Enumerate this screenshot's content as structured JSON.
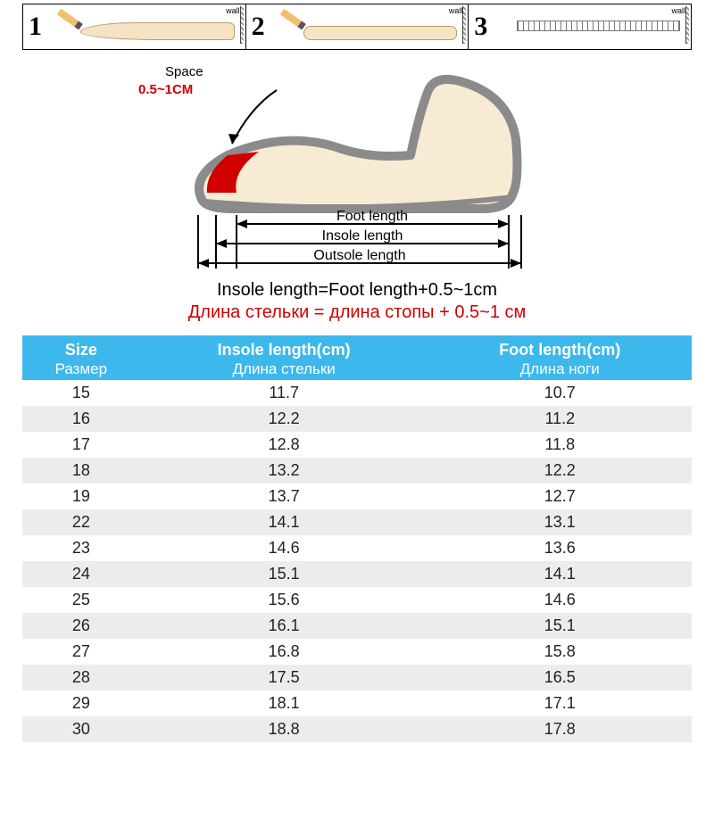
{
  "steps": {
    "nums": [
      "1",
      "2",
      "3"
    ],
    "wall_label": "wall"
  },
  "diagram": {
    "space_label": "Space",
    "space_value": "0.5~1CM",
    "foot_length": "Foot length",
    "insole_length": "Insole length",
    "outsole_length": "Outsole length"
  },
  "formula": {
    "en": "Insole length=Foot length+0.5~1cm",
    "ru": "Длина стельки = длина стопы + 0.5~1 см"
  },
  "table": {
    "headers": [
      {
        "en": "Size",
        "ru": "Размер"
      },
      {
        "en": "Insole length(cm)",
        "ru": "Длина стельки"
      },
      {
        "en": "Foot length(cm)",
        "ru": "Длина ноги"
      }
    ],
    "rows": [
      [
        "15",
        "11.7",
        "10.7"
      ],
      [
        "16",
        "12.2",
        "11.2"
      ],
      [
        "17",
        "12.8",
        "11.8"
      ],
      [
        "18",
        "13.2",
        "12.2"
      ],
      [
        "19",
        "13.7",
        "12.7"
      ],
      [
        "22",
        "14.1",
        "13.1"
      ],
      [
        "23",
        "14.6",
        "13.6"
      ],
      [
        "24",
        "15.1",
        "14.1"
      ],
      [
        "25",
        "15.6",
        "14.6"
      ],
      [
        "26",
        "16.1",
        "15.1"
      ],
      [
        "27",
        "16.8",
        "15.8"
      ],
      [
        "28",
        "17.5",
        "16.5"
      ],
      [
        "29",
        "18.1",
        "17.1"
      ],
      [
        "30",
        "18.8",
        "17.8"
      ]
    ],
    "header_bg": "#3db8ec",
    "header_fg": "#ffffff",
    "row_alt_bg": "#ececec"
  }
}
